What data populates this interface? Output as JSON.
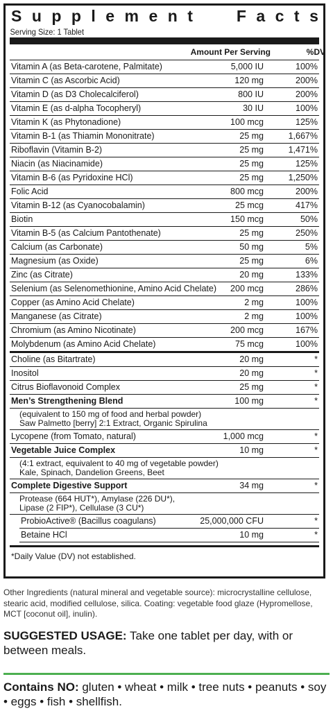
{
  "panel": {
    "title_letters": [
      "S",
      "u",
      "p",
      "p",
      "l",
      "e",
      "m",
      "e",
      "n",
      "t",
      "F",
      "a",
      "c",
      "t",
      "s"
    ],
    "serving_size": "Serving Size: 1 Tablet",
    "header_amount": "Amount Per Serving",
    "header_dv": "%DV",
    "vitamins": [
      {
        "name": "Vitamin A (as Beta-carotene, Palmitate)",
        "amount": "5,000 IU",
        "dv": "100%"
      },
      {
        "name": "Vitamin C (as Ascorbic Acid)",
        "amount": "120 mg",
        "dv": "200%"
      },
      {
        "name": "Vitamin D (as D3 Cholecalciferol)",
        "amount": "800 IU",
        "dv": "200%"
      },
      {
        "name": "Vitamin E (as d-alpha Tocopheryl)",
        "amount": "30 IU",
        "dv": "100%"
      },
      {
        "name": "Vitamin K (as Phytonadione)",
        "amount": "100 mcg",
        "dv": "125%"
      },
      {
        "name": "Vitamin B-1 (as Thiamin Mononitrate)",
        "amount": "25 mg",
        "dv": "1,667%"
      },
      {
        "name": "Riboflavin (Vitamin B-2)",
        "amount": "25 mg",
        "dv": "1,471%"
      },
      {
        "name": "Niacin (as Niacinamide)",
        "amount": "25 mg",
        "dv": "125%"
      },
      {
        "name": "Vitamin B-6 (as Pyridoxine HCl)",
        "amount": "25 mg",
        "dv": "1,250%"
      },
      {
        "name": "Folic Acid",
        "amount": "800 mcg",
        "dv": "200%"
      },
      {
        "name": "Vitamin B-12 (as Cyanocobalamin)",
        "amount": "25 mcg",
        "dv": "417%"
      },
      {
        "name": "Biotin",
        "amount": "150 mcg",
        "dv": "50%"
      },
      {
        "name": "Vitamin B-5 (as Calcium Pantothenate)",
        "amount": "25 mg",
        "dv": "250%"
      },
      {
        "name": "Calcium (as Carbonate)",
        "amount": "50 mg",
        "dv": "5%"
      },
      {
        "name": "Magnesium (as Oxide)",
        "amount": "25 mg",
        "dv": "6%"
      },
      {
        "name": "Zinc (as Citrate)",
        "amount": "20 mg",
        "dv": "133%"
      },
      {
        "name": "Selenium (as Selenomethionine, Amino Acid Chelate)",
        "amount": "200 mcg",
        "dv": "286%"
      },
      {
        "name": "Copper (as Amino Acid Chelate)",
        "amount": "2 mg",
        "dv": "100%"
      },
      {
        "name": "Manganese (as Citrate)",
        "amount": "2 mg",
        "dv": "100%"
      },
      {
        "name": "Chromium (as Amino Nicotinate)",
        "amount": "200 mcg",
        "dv": "167%"
      },
      {
        "name": "Molybdenum (as Amino Acid Chelate)",
        "amount": "75 mcg",
        "dv": "100%"
      }
    ],
    "other": [
      {
        "name": "Choline (as Bitartrate)",
        "amount": "20 mg",
        "dv": "*"
      },
      {
        "name": "Inositol",
        "amount": "20 mg",
        "dv": "*"
      },
      {
        "name": "Citrus Bioflavonoid Complex",
        "amount": "25 mg",
        "dv": "*"
      }
    ],
    "mens_blend": {
      "name": "Men’s Strengthening Blend",
      "amount": "100 mg",
      "dv": "*",
      "line1": "(equivalent to 150 mg of food and herbal powder)",
      "line2": "Saw Palmetto [berry] 2:1 Extract, Organic Spirulina"
    },
    "lycopene": {
      "name": "Lycopene (from Tomato, natural)",
      "amount": "1,000 mcg",
      "dv": "*"
    },
    "veg_juice": {
      "name": "Vegetable Juice Complex",
      "amount": "10 mg",
      "dv": "*",
      "line1": "(4:1 extract, equivalent to 40 mg of vegetable powder)",
      "line2": "Kale, Spinach, Dandelion Greens, Beet"
    },
    "digestive": {
      "name": "Complete Digestive Support",
      "amount": "34 mg",
      "dv": "*",
      "line1": "Protease (664 HUT*), Amylase (226 DU*),",
      "line2": "Lipase (2 FIP*), Cellulase (3 CU*)"
    },
    "probio": {
      "name": "ProbioActive® (Bacillus coagulans)",
      "amount": "25,000,000 CFU",
      "dv": "*"
    },
    "betaine": {
      "name": "Betaine HCl",
      "amount": "10 mg",
      "dv": "*"
    },
    "footnote": "*Daily Value (DV) not established."
  },
  "other_ingredients": "Other Ingredients (natural mineral and vegetable source): microcrystalline cellulose, stearic acid, modified cellulose, silica. Coating: vegetable food glaze (Hypromellose, MCT [coconut oil], inulin).",
  "usage": {
    "label": "SUGGESTED USAGE:",
    "text": " Take one tablet per day, with or between meals."
  },
  "contains": {
    "label": "Contains NO:",
    "text": " gluten • wheat • milk • tree nuts • peanuts • soy • eggs • fish • shellfish."
  },
  "colors": {
    "accent_green": "#4caf50",
    "ink": "#1a1a1a"
  }
}
